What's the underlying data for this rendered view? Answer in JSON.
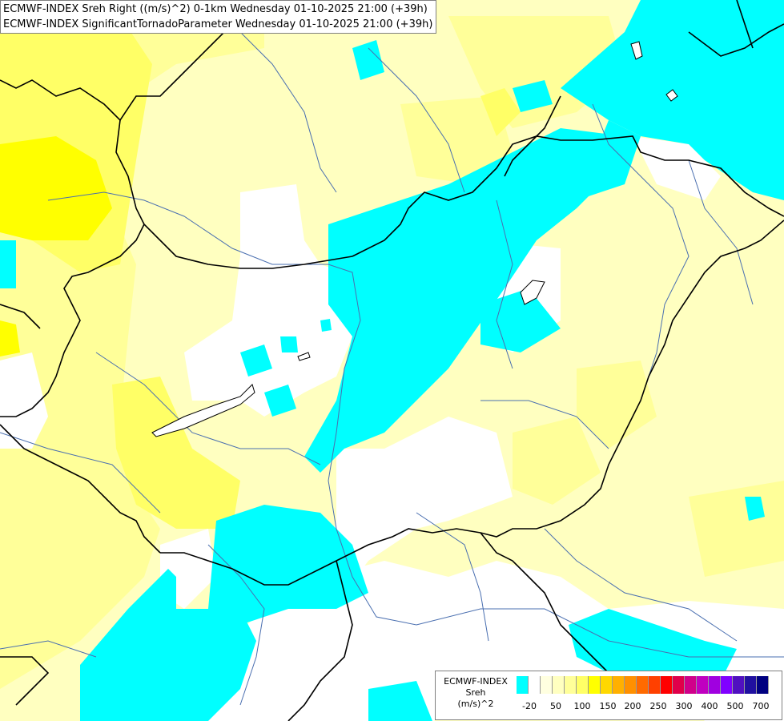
{
  "titles": {
    "line1": "ECMWF-INDEX Sreh Right ((m/s)^2) 0-1km Wednesday 01-10-2025 21:00 (+39h)",
    "line2": "ECMWF-INDEX SignificantTornadoParameter Wednesday 01-10-2025 21:00 (+39h)"
  },
  "legend": {
    "line1": "ECMWF-INDEX",
    "line2": "Sreh",
    "line3": "(m/s)^2",
    "colors": [
      "#00ffff",
      "#ffffff",
      "#ffffe0",
      "#ffffc0",
      "#ffff99",
      "#ffff66",
      "#ffff00",
      "#ffd800",
      "#ffb000",
      "#ff9000",
      "#ff6a00",
      "#ff4000",
      "#ff0000",
      "#e0004a",
      "#d0008a",
      "#c000c0",
      "#a000e0",
      "#8000ff",
      "#5010c0",
      "#2010a0",
      "#000080"
    ],
    "ticks": [
      "-20",
      "50",
      "100",
      "150",
      "200",
      "250",
      "300",
      "400",
      "500",
      "700"
    ]
  },
  "palette": {
    "cyan": "#00ffff",
    "pale_yellow": "#ffffc0",
    "light_yellow": "#ffff99",
    "yellow": "#ffff66",
    "bright_yellow": "#ffff00",
    "border": "#000000",
    "river": "#4a6fb0"
  }
}
